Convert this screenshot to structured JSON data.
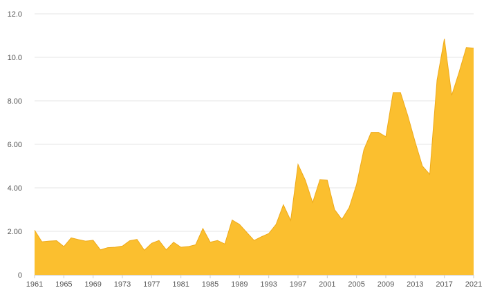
{
  "chart_data": {
    "type": "area",
    "title": "",
    "xlabel": "",
    "ylabel": "",
    "xlim": [
      1961,
      2021
    ],
    "ylim": [
      0,
      12
    ],
    "grid": true,
    "legend": "none",
    "y_ticks": [
      "0",
      "2.00",
      "4.00",
      "6.00",
      "8.00",
      "10.0",
      "12.0"
    ],
    "y_tick_values": [
      0,
      2,
      4,
      6,
      8,
      10,
      12
    ],
    "x_ticks": [
      "1961",
      "1965",
      "1969",
      "1973",
      "1977",
      "1981",
      "1985",
      "1989",
      "1993",
      "1997",
      "2001",
      "2005",
      "2009",
      "2013",
      "2017",
      "2021"
    ],
    "x_tick_values": [
      1961,
      1965,
      1969,
      1973,
      1977,
      1981,
      1985,
      1989,
      1993,
      1997,
      2001,
      2005,
      2009,
      2013,
      2017,
      2021
    ],
    "colors": {
      "fill": "#fbbf2f",
      "stroke": "#eeaa1a"
    },
    "series": [
      {
        "x": [
          1961,
          1962,
          1963,
          1964,
          1965,
          1966,
          1967,
          1968,
          1969,
          1970,
          1971,
          1972,
          1973,
          1974,
          1975,
          1976,
          1977,
          1978,
          1979,
          1980,
          1981,
          1982,
          1983,
          1984,
          1985,
          1986,
          1987,
          1988,
          1989,
          1990,
          1991,
          1992,
          1993,
          1994,
          1995,
          1996,
          1997,
          1998,
          1999,
          2000,
          2001,
          2002,
          2003,
          2004,
          2005,
          2006,
          2007,
          2008,
          2009,
          2010,
          2011,
          2012,
          2013,
          2014,
          2015,
          2016,
          2017,
          2018,
          2019,
          2020,
          2021
        ],
        "values": [
          2.05,
          1.52,
          1.55,
          1.57,
          1.3,
          1.7,
          1.62,
          1.55,
          1.59,
          1.15,
          1.25,
          1.27,
          1.32,
          1.57,
          1.63,
          1.13,
          1.45,
          1.58,
          1.15,
          1.5,
          1.27,
          1.3,
          1.38,
          2.13,
          1.5,
          1.58,
          1.42,
          2.52,
          2.32,
          1.95,
          1.58,
          1.75,
          1.9,
          2.32,
          3.22,
          2.5,
          5.08,
          4.35,
          3.32,
          4.38,
          4.35,
          3.0,
          2.55,
          3.1,
          4.15,
          5.75,
          6.55,
          6.55,
          6.35,
          8.38,
          8.38,
          7.32,
          6.12,
          5.0,
          4.62,
          8.95,
          10.85,
          8.25,
          9.3,
          10.45,
          10.42
        ]
      }
    ]
  }
}
